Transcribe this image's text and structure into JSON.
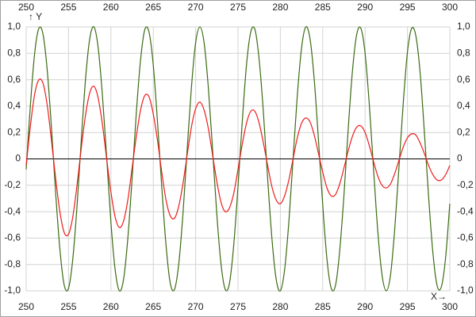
{
  "chart_data": {
    "type": "line",
    "y_label": "Y",
    "x_label": "X",
    "xlim": [
      250,
      300
    ],
    "ylim": [
      -1,
      1
    ],
    "xticks": [
      250,
      255,
      260,
      265,
      270,
      275,
      280,
      285,
      290,
      295,
      300
    ],
    "yticks": [
      {
        "value": -1,
        "label": "-1,0"
      },
      {
        "value": -0.8,
        "label": "-0,8"
      },
      {
        "value": -0.6,
        "label": "-0,6"
      },
      {
        "value": -0.4,
        "label": "-0,4"
      },
      {
        "value": -0.2,
        "label": "-0,2"
      },
      0,
      {
        "value": 0.2,
        "label": "0,2"
      },
      {
        "value": 0.4,
        "label": "0,4"
      },
      {
        "value": 0.6,
        "label": "0,6"
      },
      {
        "value": 0.8,
        "label": "0,8"
      },
      {
        "value": 1,
        "label": "1,0"
      }
    ],
    "grid": true,
    "x": [
      250,
      250.5,
      251,
      251.5,
      252,
      252.5,
      253,
      253.5,
      254,
      254.5,
      255,
      255.5,
      256,
      256.5,
      257,
      257.5,
      258,
      258.5,
      259,
      259.5,
      260,
      260.5,
      261,
      261.5,
      262,
      262.5,
      263,
      263.5,
      264,
      264.5,
      265,
      265.5,
      266,
      266.5,
      267,
      267.5,
      268,
      268.5,
      269,
      269.5,
      270,
      270.5,
      271,
      271.5,
      272,
      272.5,
      273,
      273.5,
      274,
      274.5,
      275,
      275.5,
      276,
      276.5,
      277,
      277.5,
      278,
      278.5,
      279,
      279.5,
      280,
      280.5,
      281,
      281.5,
      282,
      282.5,
      283,
      283.5,
      284,
      284.5,
      285,
      285.5,
      286,
      286.5,
      287,
      287.5,
      288,
      288.5,
      289,
      289.5,
      290,
      290.5,
      291,
      291.5,
      292,
      292.5,
      293,
      293.5,
      294,
      294.5,
      295,
      295.5,
      296,
      296.5,
      297,
      297.5,
      298,
      298.5,
      299,
      299.5,
      300
    ],
    "series": [
      {
        "color": "#3a6b12",
        "values": [
          -0.08,
          0.41,
          0.8,
          0.99,
          0.94,
          0.66,
          0.22,
          -0.28,
          -0.7,
          -0.96,
          -0.98,
          -0.76,
          -0.36,
          0.14,
          0.6,
          0.91,
          1.0,
          0.84,
          0.48,
          0.01,
          -0.48,
          -0.84,
          -1.0,
          -0.91,
          -0.6,
          -0.15,
          0.35,
          0.75,
          0.98,
          0.96,
          0.71,
          0.28,
          -0.21,
          -0.65,
          -0.94,
          -0.99,
          -0.8,
          -0.42,
          0.07,
          0.54,
          0.88,
          1.0,
          0.88,
          0.54,
          0.07,
          -0.42,
          -0.8,
          -0.99,
          -0.94,
          -0.65,
          -0.21,
          0.28,
          0.71,
          0.96,
          0.98,
          0.75,
          0.35,
          -0.15,
          -0.6,
          -0.91,
          -1.0,
          -0.84,
          -0.48,
          0.0,
          0.48,
          0.84,
          1.0,
          0.91,
          0.6,
          0.14,
          -0.35,
          -0.76,
          -0.98,
          -0.96,
          -0.7,
          -0.28,
          0.22,
          0.66,
          0.94,
          0.99,
          0.8,
          0.41,
          -0.08,
          -0.55,
          -0.88,
          -1.0,
          -0.88,
          -0.53,
          -0.06,
          0.42,
          0.81,
          0.99,
          0.93,
          0.65,
          0.2,
          -0.29,
          -0.71,
          -0.96,
          -0.97,
          -0.75,
          -0.34
        ]
      },
      {
        "color": "#ee1c1c",
        "values": [
          -0.05,
          0.25,
          0.49,
          0.6,
          0.57,
          0.4,
          0.13,
          -0.16,
          -0.41,
          -0.56,
          -0.57,
          -0.44,
          -0.2,
          0.08,
          0.33,
          0.5,
          0.55,
          0.46,
          0.26,
          0.0,
          -0.25,
          -0.44,
          -0.52,
          -0.47,
          -0.31,
          -0.07,
          0.17,
          0.37,
          0.48,
          0.47,
          0.34,
          0.14,
          -0.1,
          -0.31,
          -0.43,
          -0.45,
          -0.36,
          -0.19,
          0.03,
          0.24,
          0.38,
          0.43,
          0.37,
          0.23,
          0.03,
          -0.17,
          -0.33,
          -0.4,
          -0.37,
          -0.26,
          -0.08,
          0.11,
          0.27,
          0.36,
          0.36,
          0.27,
          0.12,
          -0.05,
          -0.21,
          -0.31,
          -0.34,
          -0.28,
          -0.16,
          0.0,
          0.16,
          0.27,
          0.31,
          0.28,
          0.18,
          0.04,
          -0.1,
          -0.22,
          -0.28,
          -0.27,
          -0.19,
          -0.07,
          0.06,
          0.17,
          0.24,
          0.25,
          0.2,
          0.1,
          -0.02,
          -0.13,
          -0.2,
          -0.22,
          -0.19,
          -0.11,
          -0.01,
          0.09,
          0.16,
          0.19,
          0.18,
          0.12,
          0.04,
          -0.05,
          -0.12,
          -0.16,
          -0.16,
          -0.12,
          -0.05
        ]
      }
    ]
  }
}
